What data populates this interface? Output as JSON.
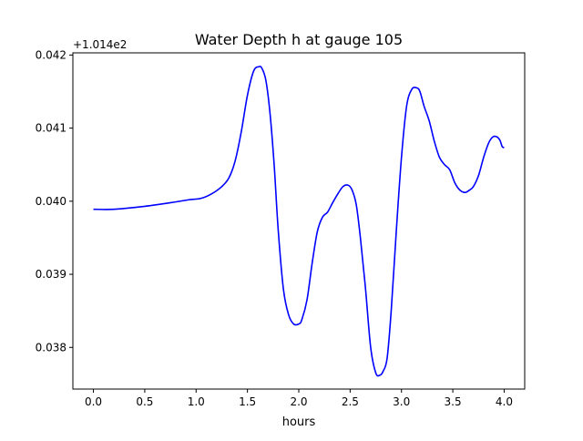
{
  "chart_data": {
    "type": "line",
    "title": "Water Depth h at gauge 105",
    "xlabel": "hours",
    "ylabel": "",
    "offset_label": "+1.014e2",
    "xlim": [
      -0.2,
      4.2
    ],
    "ylim": [
      0.03743,
      0.04203
    ],
    "xticks": [
      0.0,
      0.5,
      1.0,
      1.5,
      2.0,
      2.5,
      3.0,
      3.5,
      4.0
    ],
    "xtick_labels": [
      "0.0",
      "0.5",
      "1.0",
      "1.5",
      "2.0",
      "2.5",
      "3.0",
      "3.5",
      "4.0"
    ],
    "yticks": [
      0.038,
      0.039,
      0.04,
      0.041,
      0.042
    ],
    "ytick_labels": [
      "0.038",
      "0.039",
      "0.040",
      "0.041",
      "0.042"
    ],
    "grid": false,
    "series": [
      {
        "color": "#0000ff",
        "x": [
          0.0,
          0.2,
          0.5,
          0.8,
          0.93,
          1.05,
          1.15,
          1.25,
          1.32,
          1.38,
          1.44,
          1.5,
          1.56,
          1.61,
          1.64,
          1.68,
          1.72,
          1.76,
          1.8,
          1.85,
          1.9,
          1.95,
          2.0,
          2.03,
          2.08,
          2.13,
          2.18,
          2.23,
          2.28,
          2.33,
          2.38,
          2.43,
          2.48,
          2.52,
          2.56,
          2.6,
          2.65,
          2.7,
          2.75,
          2.79,
          2.82,
          2.86,
          2.9,
          2.95,
          3.0,
          3.05,
          3.1,
          3.15,
          3.18,
          3.22,
          3.27,
          3.32,
          3.37,
          3.42,
          3.47,
          3.52,
          3.57,
          3.62,
          3.66,
          3.7,
          3.75,
          3.8,
          3.85,
          3.89,
          3.93,
          3.96,
          3.98,
          4.0
        ],
        "y": [
          0.03989,
          0.03989,
          0.03993,
          0.03999,
          0.04002,
          0.04004,
          0.0401,
          0.0402,
          0.04032,
          0.04055,
          0.04095,
          0.04145,
          0.04178,
          0.04184,
          0.04182,
          0.04165,
          0.0412,
          0.0405,
          0.0396,
          0.0388,
          0.03845,
          0.03832,
          0.03832,
          0.03838,
          0.03865,
          0.03915,
          0.03958,
          0.03978,
          0.03985,
          0.03998,
          0.0401,
          0.0402,
          0.04022,
          0.04015,
          0.03995,
          0.0395,
          0.0388,
          0.038,
          0.03765,
          0.03762,
          0.03767,
          0.03785,
          0.0385,
          0.0396,
          0.0406,
          0.0413,
          0.04153,
          0.04155,
          0.0415,
          0.0413,
          0.0411,
          0.04082,
          0.0406,
          0.0405,
          0.04043,
          0.04025,
          0.04015,
          0.04012,
          0.04015,
          0.0402,
          0.04035,
          0.0406,
          0.0408,
          0.04088,
          0.04088,
          0.04083,
          0.04075,
          0.04073
        ]
      }
    ]
  }
}
